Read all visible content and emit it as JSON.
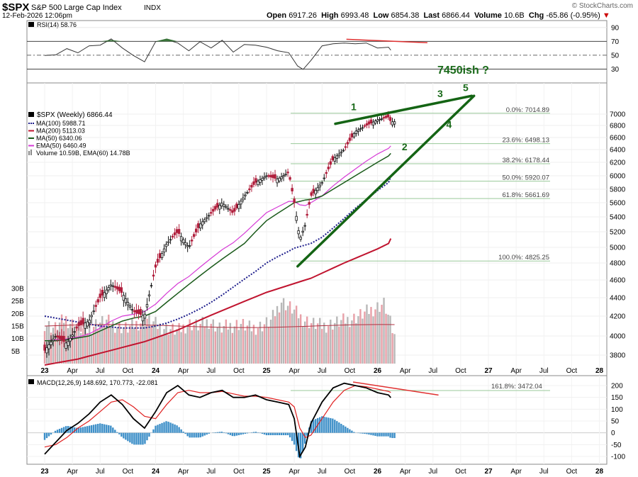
{
  "header": {
    "symbol": "$SPX",
    "name": "S&P 500 Large Cap Index",
    "exchange": "INDX",
    "date": "12-Feb-2026 12:06pm",
    "watermark": "© StockCharts.com",
    "open_label": "Open",
    "open": "6917.26",
    "high_label": "High",
    "high": "6993.48",
    "low_label": "Low",
    "low": "6854.38",
    "last_label": "Last",
    "last": "6866.44",
    "volume_label": "Volume",
    "volume": "10.6B",
    "chg_label": "Chg",
    "chg": "-65.86 (-0.95%)",
    "chg_arrow": "▼"
  },
  "colors": {
    "ma100": "#1e1e8c",
    "ma200": "#c0142f",
    "ma50": "#1a5a1a",
    "ema50": "#d63ad6",
    "up": "#111111",
    "down": "#b01e3c",
    "trend": "#146414",
    "diverge": "#e03030",
    "vol_up": "#b8b8b8",
    "vol_down": "#e8a0a8",
    "macd": "#000000",
    "signal": "#e02020",
    "hist": "#3d8fc8"
  },
  "chart_data": [
    {
      "panel": "rsi",
      "type": "line",
      "title": "RSI(14) 58.76",
      "label": "RSI(14)",
      "value": 58.76,
      "yticks": [
        90,
        70,
        50,
        30
      ],
      "ylim": [
        10,
        100
      ],
      "overbought": 70,
      "oversold": 30,
      "series": [
        {
          "name": "RSI",
          "x": [
            2023.0,
            2023.1,
            2023.2,
            2023.3,
            2023.4,
            2023.5,
            2023.6,
            2023.7,
            2023.8,
            2023.9,
            2024.0,
            2024.1,
            2024.2,
            2024.3,
            2024.4,
            2024.5,
            2024.6,
            2024.7,
            2024.8,
            2024.9,
            2025.0,
            2025.1,
            2025.2,
            2025.28,
            2025.33,
            2025.4,
            2025.5,
            2025.6,
            2025.7,
            2025.8,
            2025.9,
            2026.0,
            2026.1,
            2026.12
          ],
          "values": [
            48,
            52,
            58,
            55,
            62,
            66,
            72,
            62,
            48,
            42,
            68,
            74,
            66,
            58,
            68,
            62,
            70,
            56,
            64,
            66,
            60,
            58,
            52,
            36,
            28,
            44,
            62,
            68,
            66,
            68,
            66,
            62,
            60,
            58.76
          ]
        }
      ],
      "annotation": {
        "type": "divergence-line",
        "from": {
          "x": 2025.72,
          "y": 73
        },
        "to": {
          "x": 2026.45,
          "y": 68
        }
      }
    },
    {
      "panel": "price",
      "type": "line",
      "title": "$SPX (Weekly) 6866.44",
      "legend": [
        {
          "name": "MA(100) 5988.71",
          "style": "dotted",
          "color_key": "ma100"
        },
        {
          "name": "MA(200) 5113.03",
          "style": "solid",
          "color_key": "ma200"
        },
        {
          "name": "MA(50) 6340.06",
          "style": "solid",
          "color_key": "ma50"
        },
        {
          "name": "EMA(50) 6460.49",
          "style": "solid",
          "color_key": "ema50"
        },
        {
          "name": "Volume 10.59B, EMA(60) 14.78B",
          "style": "bar",
          "color_key": "vol_up"
        }
      ],
      "yticks": [
        3800,
        4000,
        4200,
        4400,
        4600,
        4800,
        5000,
        5200,
        5400,
        5600,
        5800,
        6000,
        6200,
        6400,
        6600,
        6800,
        7000
      ],
      "x": [
        2023.0,
        2023.1,
        2023.2,
        2023.3,
        2023.4,
        2023.5,
        2023.6,
        2023.7,
        2023.8,
        2023.9,
        2024.0,
        2024.1,
        2024.2,
        2024.3,
        2024.4,
        2024.5,
        2024.6,
        2024.7,
        2024.8,
        2024.9,
        2025.0,
        2025.1,
        2025.2,
        2025.25,
        2025.3,
        2025.35,
        2025.4,
        2025.5,
        2025.6,
        2025.7,
        2025.8,
        2025.9,
        2026.0,
        2026.1,
        2026.12
      ],
      "series": [
        {
          "name": "SPX close",
          "values": [
            3850,
            4000,
            3920,
            4100,
            4150,
            4400,
            4550,
            4450,
            4250,
            4200,
            4750,
            5050,
            5200,
            5000,
            5300,
            5450,
            5600,
            5450,
            5700,
            5900,
            6000,
            5950,
            6050,
            5600,
            5100,
            5300,
            5700,
            5900,
            6250,
            6400,
            6700,
            6800,
            6900,
            6950,
            6866
          ]
        },
        {
          "name": "MA(50)",
          "values": [
            3950,
            3950,
            3960,
            3980,
            4000,
            4050,
            4100,
            4150,
            4180,
            4200,
            4250,
            4350,
            4450,
            4550,
            4650,
            4750,
            4850,
            4950,
            5050,
            5200,
            5350,
            5450,
            5550,
            5600,
            5620,
            5640,
            5650,
            5700,
            5800,
            5900,
            6000,
            6100,
            6200,
            6300,
            6340
          ]
        },
        {
          "name": "EMA(50)",
          "values": [
            3950,
            3960,
            3970,
            3990,
            4020,
            4080,
            4150,
            4200,
            4220,
            4250,
            4330,
            4450,
            4560,
            4640,
            4750,
            4860,
            4970,
            5060,
            5180,
            5320,
            5460,
            5540,
            5620,
            5620,
            5570,
            5560,
            5600,
            5700,
            5850,
            5980,
            6100,
            6220,
            6330,
            6420,
            6460
          ]
        },
        {
          "name": "MA(100)",
          "values": [
            4200,
            4180,
            4160,
            4140,
            4120,
            4100,
            4090,
            4080,
            4080,
            4080,
            4100,
            4130,
            4170,
            4220,
            4280,
            4350,
            4430,
            4520,
            4610,
            4700,
            4800,
            4880,
            4950,
            4990,
            5010,
            5030,
            5050,
            5130,
            5250,
            5380,
            5520,
            5650,
            5780,
            5900,
            5988
          ]
        },
        {
          "name": "MA(200)",
          "values": [
            3700,
            3720,
            3740,
            3760,
            3790,
            3820,
            3850,
            3880,
            3910,
            3940,
            3980,
            4020,
            4060,
            4110,
            4160,
            4210,
            4260,
            4310,
            4360,
            4410,
            4460,
            4500,
            4540,
            4560,
            4580,
            4600,
            4620,
            4680,
            4740,
            4800,
            4860,
            4920,
            4980,
            5050,
            5113
          ]
        }
      ],
      "fib_levels": [
        {
          "label": "0.0%: 7014.89",
          "value": 7014.89
        },
        {
          "label": "23.6%: 6498.13",
          "value": 6498.13
        },
        {
          "label": "38.2%: 6178.44",
          "value": 6178.44
        },
        {
          "label": "50.0%: 5920.07",
          "value": 5920.07
        },
        {
          "label": "61.8%: 5661.69",
          "value": 5661.69
        },
        {
          "label": "100.0%: 4825.25",
          "value": 4825.25
        }
      ],
      "annotations": {
        "target_text": "7450ish ?",
        "waves": [
          {
            "label": "1",
            "x": 2025.76,
            "y": 7070
          },
          {
            "label": "2",
            "x": 2026.22,
            "y": 6390
          },
          {
            "label": "3",
            "x": 2026.54,
            "y": 7310
          },
          {
            "label": "4",
            "x": 2026.62,
            "y": 6760
          },
          {
            "label": "5",
            "x": 2026.77,
            "y": 7420
          }
        ],
        "trend_lines": [
          {
            "from": {
              "x": 2025.28,
              "y": 4760
            },
            "to": {
              "x": 2026.87,
              "y": 7330
            }
          },
          {
            "from": {
              "x": 2025.62,
              "y": 6830
            },
            "to": {
              "x": 2026.85,
              "y": 7330
            }
          }
        ]
      },
      "volume": {
        "yticks": [
          "5B",
          "10B",
          "15B",
          "20B",
          "25B",
          "30B"
        ],
        "ylim": [
          0,
          32
        ],
        "note": "weekly volume bars ~13-18B, spikes to ~25B near 2025.28",
        "values": [
          16,
          14,
          18,
          15,
          13,
          16,
          17,
          15,
          14,
          16,
          18,
          15,
          14,
          13,
          16,
          15,
          17,
          14,
          15,
          16,
          14,
          15,
          17,
          25,
          22,
          18,
          16,
          15,
          16,
          17,
          18,
          20,
          22,
          24,
          10.6
        ]
      }
    },
    {
      "panel": "macd",
      "type": "line",
      "title": "MACD(12,26,9) 148.692, 170.773, -22.081",
      "yticks": [
        200,
        150,
        100,
        50,
        0,
        -50,
        -100
      ],
      "ylim": [
        -120,
        230
      ],
      "fib_label": "161.8%: 3472.04",
      "x": [
        2023.0,
        2023.1,
        2023.2,
        2023.3,
        2023.4,
        2023.5,
        2023.6,
        2023.7,
        2023.8,
        2023.9,
        2024.0,
        2024.1,
        2024.2,
        2024.3,
        2024.4,
        2024.5,
        2024.6,
        2024.7,
        2024.8,
        2024.9,
        2025.0,
        2025.1,
        2025.2,
        2025.25,
        2025.3,
        2025.35,
        2025.4,
        2025.5,
        2025.6,
        2025.7,
        2025.8,
        2025.9,
        2026.0,
        2026.1,
        2026.12
      ],
      "series": [
        {
          "name": "MACD",
          "values": [
            -90,
            -40,
            10,
            40,
            80,
            130,
            160,
            120,
            60,
            20,
            90,
            170,
            200,
            160,
            150,
            170,
            180,
            150,
            150,
            160,
            140,
            130,
            120,
            60,
            -100,
            -60,
            40,
            130,
            190,
            210,
            200,
            190,
            170,
            160,
            148.692
          ]
        },
        {
          "name": "Signal",
          "values": [
            -60,
            -50,
            -20,
            20,
            50,
            90,
            130,
            140,
            110,
            70,
            60,
            120,
            170,
            180,
            170,
            170,
            175,
            165,
            155,
            155,
            150,
            140,
            130,
            110,
            20,
            -20,
            -10,
            60,
            130,
            180,
            200,
            195,
            185,
            175,
            170.773
          ]
        },
        {
          "name": "Histogram",
          "values": [
            -30,
            10,
            30,
            20,
            30,
            40,
            30,
            -20,
            -50,
            -50,
            30,
            50,
            30,
            -20,
            -20,
            0,
            5,
            -15,
            -5,
            5,
            -10,
            -10,
            -10,
            -50,
            -120,
            -40,
            50,
            70,
            60,
            30,
            0,
            -5,
            -15,
            -15,
            -22.081
          ]
        }
      ],
      "annotation": {
        "type": "divergence-line",
        "from": {
          "x": 2025.78,
          "y": 215
        },
        "to": {
          "x": 2026.55,
          "y": 160
        }
      }
    }
  ],
  "x_axis_labels": [
    "23",
    "Apr",
    "Jul",
    "Oct",
    "24",
    "Apr",
    "Jul",
    "Oct",
    "25",
    "Apr",
    "Jul",
    "Oct",
    "26",
    "Apr",
    "Jul",
    "Oct",
    "27",
    "Apr",
    "Jul",
    "Oct",
    "28"
  ]
}
